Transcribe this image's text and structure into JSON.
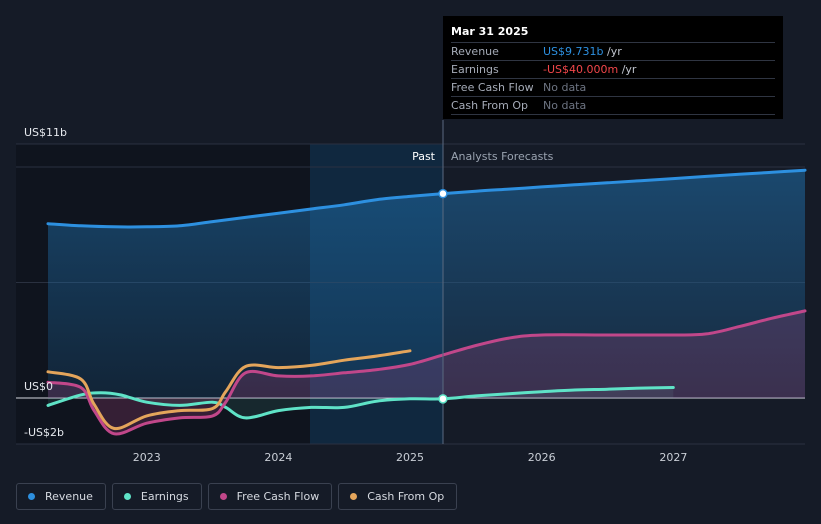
{
  "chart_data": {
    "type": "line",
    "y_axis_labels": {
      "top": "US$11b",
      "zero": "US$0",
      "bottom": "-US$2b"
    },
    "ylim": [
      -2,
      11
    ],
    "xlim": [
      2022.25,
      2028.0
    ],
    "x_ticks": [
      "2023",
      "2024",
      "2025",
      "2026",
      "2027"
    ],
    "x_tick_values": [
      2023,
      2024,
      2025,
      2026,
      2027
    ],
    "divider_x": 2025.25,
    "past_label": "Past",
    "forecast_label": "Analysts Forecasts",
    "series": [
      {
        "name": "Revenue",
        "color": "#2d90e0",
        "area": true,
        "x": [
          2022.25,
          2022.5,
          2022.75,
          2023.0,
          2023.25,
          2023.5,
          2023.75,
          2024.0,
          2024.25,
          2024.5,
          2024.75,
          2025.0,
          2025.25,
          2025.5,
          2025.75,
          2026.0,
          2026.25,
          2026.5,
          2026.75,
          2027.0,
          2027.25,
          2027.5,
          2027.75,
          2028.0
        ],
        "y": [
          8.3,
          8.2,
          8.15,
          8.15,
          8.2,
          8.4,
          8.6,
          8.8,
          9.0,
          9.2,
          9.45,
          9.6,
          9.731,
          9.85,
          9.95,
          10.05,
          10.15,
          10.25,
          10.35,
          10.45,
          10.55,
          10.65,
          10.75,
          10.85
        ]
      },
      {
        "name": "Earnings",
        "color": "#5fe3c7",
        "area": true,
        "x": [
          2022.25,
          2022.5,
          2022.65,
          2022.8,
          2023.0,
          2023.25,
          2023.5,
          2023.6,
          2023.75,
          2024.0,
          2024.25,
          2024.5,
          2024.75,
          2025.0,
          2025.25,
          2025.5,
          2025.75,
          2026.0,
          2026.25,
          2026.5,
          2026.75,
          2027.0
        ],
        "y": [
          -0.35,
          0.15,
          0.25,
          0.15,
          -0.2,
          -0.35,
          -0.2,
          -0.45,
          -0.95,
          -0.6,
          -0.45,
          -0.45,
          -0.15,
          -0.04,
          -0.04,
          0.1,
          0.2,
          0.3,
          0.38,
          0.42,
          0.47,
          0.5
        ]
      },
      {
        "name": "Free Cash Flow",
        "color": "#c1478a",
        "area": true,
        "x": [
          2022.25,
          2022.5,
          2022.6,
          2022.75,
          2023.0,
          2023.25,
          2023.5,
          2023.6,
          2023.75,
          2024.0,
          2024.25,
          2024.5,
          2024.75,
          2025.0,
          2025.25,
          2025.5,
          2025.75,
          2026.0,
          2026.5,
          2027.0,
          2027.25,
          2027.5,
          2027.75,
          2028.0
        ],
        "y": [
          0.75,
          0.5,
          -0.6,
          -1.7,
          -1.2,
          -0.95,
          -0.85,
          -0.2,
          1.2,
          1.05,
          1.05,
          1.2,
          1.35,
          1.6,
          2.05,
          2.5,
          2.85,
          3.0,
          3.0,
          3.0,
          3.05,
          3.4,
          3.8,
          4.15
        ]
      },
      {
        "name": "Cash From Op",
        "color": "#e4a55b",
        "area": false,
        "x": [
          2022.25,
          2022.5,
          2022.6,
          2022.75,
          2023.0,
          2023.25,
          2023.5,
          2023.6,
          2023.75,
          2024.0,
          2024.25,
          2024.5,
          2024.75,
          2025.0
        ],
        "y": [
          1.25,
          0.9,
          -0.3,
          -1.45,
          -0.85,
          -0.6,
          -0.5,
          0.3,
          1.5,
          1.45,
          1.55,
          1.8,
          2.0,
          2.25
        ]
      }
    ]
  },
  "tooltip": {
    "date": "Mar 31 2025",
    "rows": [
      {
        "label": "Revenue",
        "value": "US$9.731b",
        "suffix": " /yr",
        "color": "#2d90e0"
      },
      {
        "label": "Earnings",
        "value": "-US$40.000m",
        "suffix": " /yr",
        "color": "#f2464a"
      },
      {
        "label": "Free Cash Flow",
        "value": "No data",
        "suffix": "",
        "color": "#6d7482"
      },
      {
        "label": "Cash From Op",
        "value": "No data",
        "suffix": "",
        "color": "#6d7482"
      }
    ]
  },
  "legend": [
    {
      "label": "Revenue",
      "color": "#2d90e0"
    },
    {
      "label": "Earnings",
      "color": "#5fe3c7"
    },
    {
      "label": "Free Cash Flow",
      "color": "#c1478a"
    },
    {
      "label": "Cash From Op",
      "color": "#e4a55b"
    }
  ]
}
